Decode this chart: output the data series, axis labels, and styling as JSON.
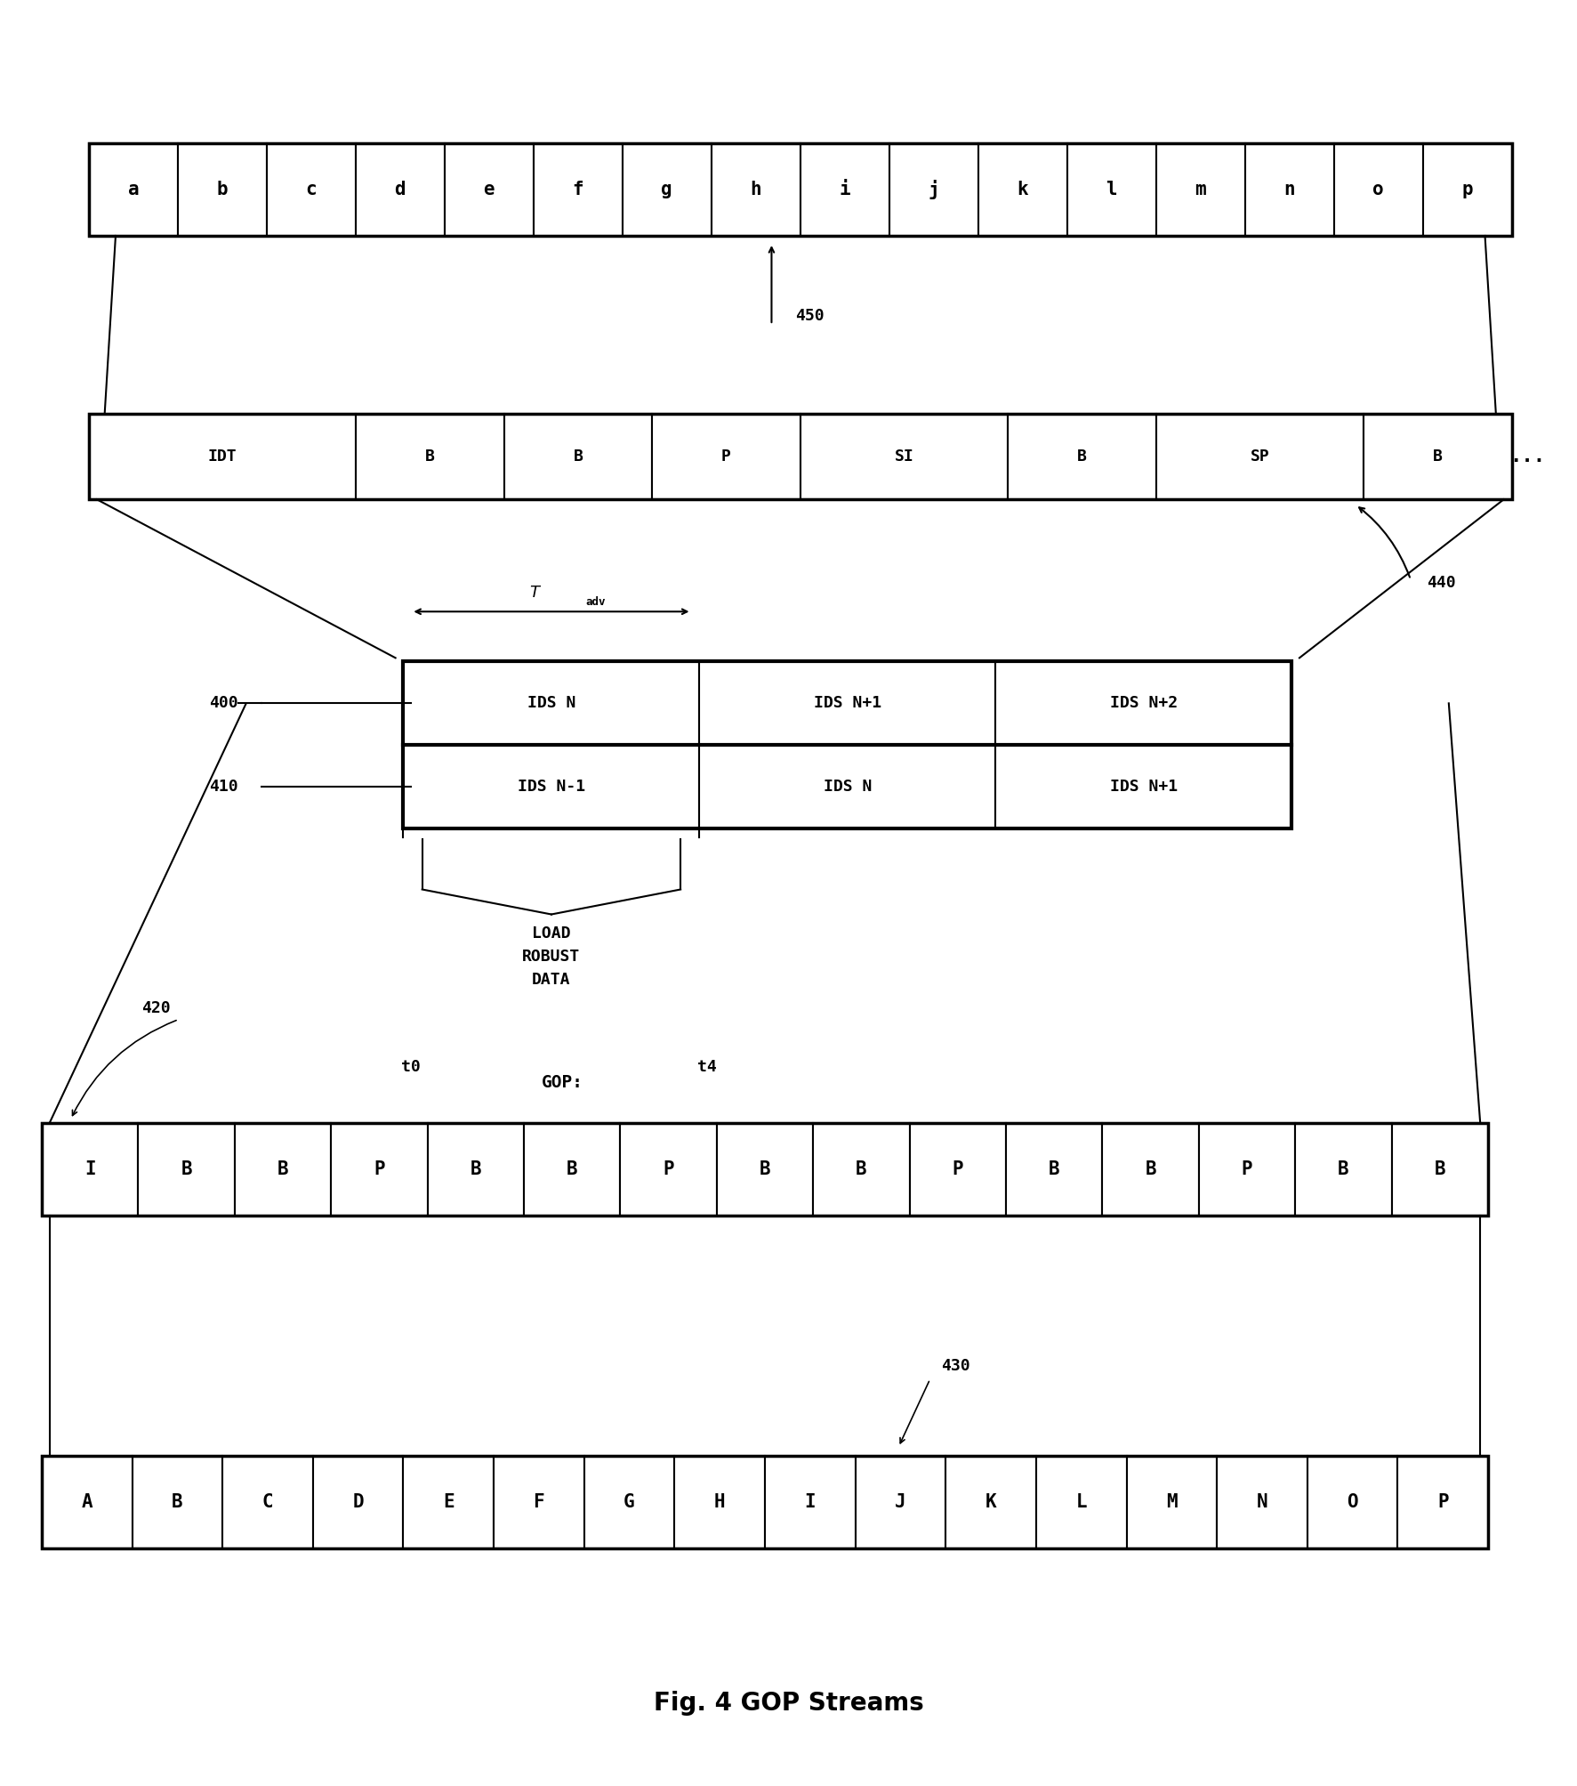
{
  "fig_width": 17.73,
  "fig_height": 20.07,
  "bg_color": "#ffffff",
  "title": "Fig. 4 GOP Streams",
  "row1_labels": [
    "a",
    "b",
    "c",
    "d",
    "e",
    "f",
    "g",
    "h",
    "i",
    "j",
    "k",
    "l",
    "m",
    "n",
    "o",
    "p"
  ],
  "row1_label_450": "450",
  "row2_labels": [
    "IDT",
    "B",
    "B",
    "P",
    "SI",
    "B",
    "SP",
    "B"
  ],
  "row2_dotdot": "...",
  "row2_label_440": "440",
  "ids_row1": [
    "IDS N",
    "IDS N+1",
    "IDS N+2"
  ],
  "ids_row2": [
    "IDS N-1",
    "IDS N",
    "IDS N+1"
  ],
  "label_400": "400",
  "label_410": "410",
  "label_load": "LOAD\nROBUST\nDATA",
  "label_t0": "t0",
  "label_t4": "t4",
  "gop_labels": [
    "I",
    "B",
    "B",
    "P",
    "B",
    "B",
    "P",
    "B",
    "B",
    "P",
    "B",
    "B",
    "P",
    "B",
    "B"
  ],
  "gop_label": "GOP:",
  "label_420": "420",
  "row3_labels": [
    "A",
    "B",
    "C",
    "D",
    "E",
    "F",
    "G",
    "H",
    "I",
    "J",
    "K",
    "L",
    "M",
    "N",
    "O",
    "P"
  ],
  "label_430": "430"
}
